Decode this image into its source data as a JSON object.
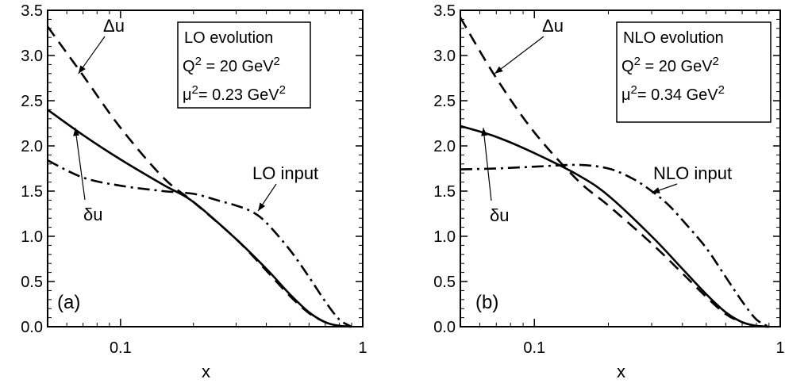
{
  "chart_data": [
    {
      "type": "line",
      "panel_label": "(a)",
      "xlabel": "x",
      "ylabel": "",
      "xscale": "log",
      "xlim": [
        0.05,
        1.0
      ],
      "ylim": [
        0.0,
        3.5
      ],
      "xticks": [
        {
          "value": 0.1,
          "label": "0.1"
        },
        {
          "value": 1,
          "label": "1"
        }
      ],
      "yticks": [
        {
          "value": 0.0,
          "label": "0.0"
        },
        {
          "value": 0.5,
          "label": "0.5"
        },
        {
          "value": 1.0,
          "label": "1.0"
        },
        {
          "value": 1.5,
          "label": "1.5"
        },
        {
          "value": 2.0,
          "label": "2.0"
        },
        {
          "value": 2.5,
          "label": "2.5"
        },
        {
          "value": 3.0,
          "label": "3.0"
        },
        {
          "value": 3.5,
          "label": "3.5"
        }
      ],
      "legend_box": {
        "position": "top-right",
        "lines": [
          "LO evolution",
          "Q2 = 20 GeV2",
          "μ2= 0.23 GeV2"
        ]
      },
      "series": [
        {
          "name": "Δu",
          "style": "dashed",
          "x": [
            0.05,
            0.07,
            0.1,
            0.15,
            0.2,
            0.3,
            0.4,
            0.5,
            0.6,
            0.7,
            0.8,
            0.9
          ],
          "y": [
            3.32,
            2.78,
            2.2,
            1.65,
            1.38,
            0.97,
            0.62,
            0.34,
            0.15,
            0.05,
            0.01,
            0.0
          ]
        },
        {
          "name": "δu",
          "style": "solid",
          "x": [
            0.05,
            0.07,
            0.1,
            0.15,
            0.2,
            0.3,
            0.4,
            0.5,
            0.6,
            0.7,
            0.8,
            0.9
          ],
          "y": [
            2.4,
            2.12,
            1.85,
            1.57,
            1.38,
            0.97,
            0.64,
            0.36,
            0.16,
            0.05,
            0.01,
            0.0
          ]
        },
        {
          "name": "LO input",
          "style": "dashdot",
          "x": [
            0.05,
            0.07,
            0.1,
            0.15,
            0.2,
            0.25,
            0.3,
            0.35,
            0.4,
            0.5,
            0.6,
            0.7,
            0.8,
            0.9
          ],
          "y": [
            1.84,
            1.65,
            1.56,
            1.5,
            1.47,
            1.4,
            1.34,
            1.27,
            1.15,
            0.85,
            0.55,
            0.28,
            0.08,
            0.0
          ]
        }
      ],
      "annotations": [
        {
          "text": "Δu",
          "series": "Δu",
          "arrow_to": [
            0.067,
            2.8
          ]
        },
        {
          "text": "δu",
          "series": "δu",
          "arrow_to": [
            0.065,
            2.2
          ]
        },
        {
          "text": "LO input",
          "series": "LO input",
          "arrow_to": [
            0.37,
            1.28
          ]
        }
      ]
    },
    {
      "type": "line",
      "panel_label": "(b)",
      "xlabel": "x",
      "ylabel": "",
      "xscale": "log",
      "xlim": [
        0.05,
        1.0
      ],
      "ylim": [
        0.0,
        3.5
      ],
      "xticks": [
        {
          "value": 0.1,
          "label": "0.1"
        },
        {
          "value": 1,
          "label": "1"
        }
      ],
      "yticks": [
        {
          "value": 0.0,
          "label": "0.0"
        },
        {
          "value": 0.5,
          "label": "0.5"
        },
        {
          "value": 1.0,
          "label": "1.0"
        },
        {
          "value": 1.5,
          "label": "1.5"
        },
        {
          "value": 2.0,
          "label": "2.0"
        },
        {
          "value": 2.5,
          "label": "2.5"
        },
        {
          "value": 3.0,
          "label": "3.0"
        },
        {
          "value": 3.5,
          "label": "3.5"
        }
      ],
      "legend_box": {
        "position": "top-right",
        "lines": [
          "NLO evolution",
          "Q2 = 20 GeV2",
          "μ2= 0.34 GeV2"
        ]
      },
      "series": [
        {
          "name": "Δu",
          "style": "dashed",
          "x": [
            0.05,
            0.07,
            0.1,
            0.15,
            0.2,
            0.3,
            0.4,
            0.5,
            0.6,
            0.7,
            0.8,
            0.9
          ],
          "y": [
            3.42,
            2.75,
            2.15,
            1.62,
            1.34,
            0.92,
            0.59,
            0.33,
            0.14,
            0.05,
            0.01,
            0.0
          ]
        },
        {
          "name": "δu",
          "style": "solid",
          "x": [
            0.05,
            0.07,
            0.1,
            0.15,
            0.2,
            0.3,
            0.4,
            0.5,
            0.6,
            0.7,
            0.8,
            0.9
          ],
          "y": [
            2.22,
            2.1,
            1.92,
            1.68,
            1.45,
            1.0,
            0.64,
            0.36,
            0.16,
            0.05,
            0.01,
            0.0
          ]
        },
        {
          "name": "NLO input",
          "style": "dashdot",
          "x": [
            0.05,
            0.07,
            0.1,
            0.15,
            0.2,
            0.25,
            0.3,
            0.35,
            0.4,
            0.5,
            0.6,
            0.7,
            0.8,
            0.9
          ],
          "y": [
            1.74,
            1.75,
            1.77,
            1.79,
            1.75,
            1.64,
            1.5,
            1.35,
            1.18,
            0.87,
            0.55,
            0.28,
            0.08,
            0.0
          ]
        }
      ],
      "annotations": [
        {
          "text": "Δu",
          "series": "Δu",
          "arrow_to": [
            0.069,
            2.8
          ]
        },
        {
          "text": "δu",
          "series": "δu",
          "arrow_to": [
            0.062,
            2.2
          ]
        },
        {
          "text": "NLO input",
          "series": "NLO input",
          "arrow_to": [
            0.3,
            1.48
          ]
        }
      ]
    }
  ]
}
